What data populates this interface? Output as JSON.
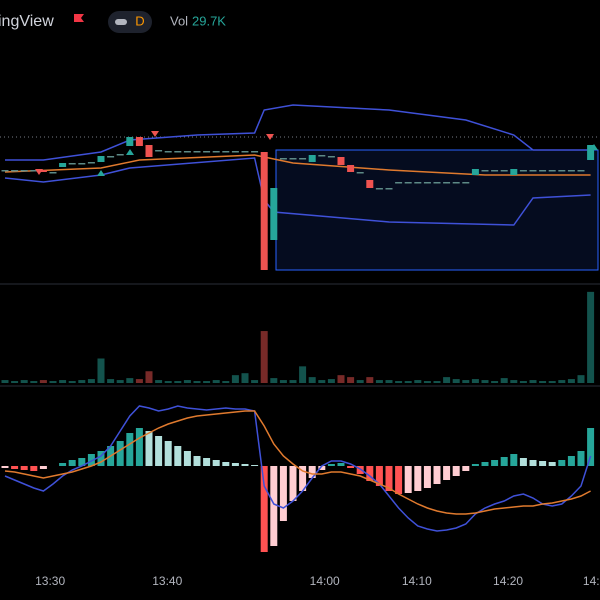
{
  "header": {
    "title": "ingView",
    "interval": "D",
    "volume_label": "Vol",
    "volume_value": "29.7K"
  },
  "chart_data": [
    {
      "type": "candlestick",
      "ylim": [
        0,
        200
      ],
      "price_line": 143,
      "up_color": "#26a69a",
      "down_color": "#ef5350",
      "flat_color": "#5d8a86",
      "open": [
        110,
        110,
        110,
        110,
        110,
        108,
        113,
        117,
        117,
        118,
        118,
        124,
        126,
        134,
        143,
        135,
        130,
        129,
        129,
        129,
        129,
        129,
        129,
        129,
        129,
        129,
        129,
        128,
        40,
        122,
        122,
        122,
        118,
        125,
        124,
        123,
        115,
        108,
        100,
        92,
        92,
        98,
        98,
        98,
        98,
        98,
        98,
        98,
        98,
        105,
        110,
        110,
        110,
        105,
        110,
        110,
        110,
        110,
        110,
        110,
        110,
        120
      ],
      "close": [
        110,
        110,
        110,
        110,
        108,
        108,
        117,
        117,
        117,
        118,
        124,
        124,
        126,
        143,
        134,
        123,
        130,
        129,
        129,
        129,
        129,
        129,
        129,
        129,
        129,
        129,
        129,
        10,
        92,
        122,
        122,
        122,
        125,
        125,
        124,
        115,
        108,
        108,
        92,
        92,
        92,
        98,
        98,
        98,
        98,
        98,
        98,
        98,
        98,
        111,
        110,
        110,
        110,
        111,
        110,
        110,
        110,
        110,
        110,
        110,
        110,
        135
      ],
      "lines": [
        {
          "color": "#3f51d8",
          "x": [
            0,
            4,
            10,
            13,
            20,
            26,
            27,
            30,
            40,
            48,
            53,
            55,
            61
          ],
          "values": [
            120,
            120,
            128,
            140,
            145,
            147,
            170,
            175,
            170,
            160,
            145,
            130,
            130
          ]
        },
        {
          "color": "#3f51d8",
          "x": [
            0,
            4,
            10,
            13,
            26,
            27,
            28,
            40,
            53,
            55,
            61
          ],
          "values": [
            102,
            98,
            105,
            112,
            122,
            80,
            68,
            58,
            55,
            82,
            85
          ]
        },
        {
          "color": "#e07a2e",
          "x": [
            0,
            10,
            14,
            26,
            30,
            40,
            50,
            61
          ],
          "values": [
            108,
            112,
            120,
            125,
            117,
            110,
            105,
            105
          ]
        }
      ]
    },
    {
      "type": "bar",
      "ylim": [
        0,
        100
      ],
      "values": [
        3,
        2,
        3,
        2,
        3,
        2,
        3,
        2,
        3,
        4,
        25,
        4,
        3,
        5,
        4,
        12,
        3,
        2,
        2,
        3,
        2,
        2,
        3,
        2,
        8,
        10,
        3,
        53,
        5,
        3,
        3,
        17,
        6,
        3,
        4,
        8,
        6,
        3,
        6,
        3,
        3,
        2,
        2,
        3,
        2,
        2,
        6,
        4,
        3,
        4,
        3,
        2,
        5,
        3,
        2,
        3,
        2,
        2,
        3,
        4,
        8,
        93
      ]
    },
    {
      "type": "macd",
      "ylim": [
        -94,
        71
      ],
      "hist_colors": [
        "#26a69a",
        "#b2dfdb",
        "#ff5252",
        "#ffcdd2"
      ],
      "histogram": [
        -2,
        -3,
        -4,
        -5,
        -3,
        0,
        3,
        6,
        8,
        12,
        15,
        20,
        25,
        33,
        38,
        35,
        30,
        25,
        20,
        15,
        10,
        8,
        6,
        4,
        3,
        2,
        1,
        -86,
        -80,
        -55,
        -35,
        -25,
        -12,
        -4,
        2,
        3,
        -2,
        -8,
        -15,
        -20,
        -25,
        -28,
        -27,
        -25,
        -22,
        -18,
        -14,
        -10,
        -5,
        2,
        4,
        6,
        9,
        12,
        8,
        6,
        5,
        4,
        6,
        10,
        15,
        38
      ],
      "lines": [
        {
          "color": "#3f51d8",
          "values": [
            -10,
            -14,
            -18,
            -22,
            -25,
            -18,
            -10,
            -4,
            0,
            5,
            10,
            20,
            35,
            50,
            60,
            58,
            55,
            57,
            60,
            58,
            57,
            56,
            57,
            58,
            57,
            57,
            55,
            -20,
            -38,
            -42,
            -35,
            -25,
            -12,
            0,
            5,
            5,
            2,
            -3,
            -10,
            -18,
            -30,
            -42,
            -52,
            -60,
            -63,
            -65,
            -64,
            -62,
            -58,
            -48,
            -42,
            -38,
            -35,
            -30,
            -28,
            -32,
            -38,
            -40,
            -38,
            -30,
            -20,
            10
          ]
        },
        {
          "color": "#e07a2e",
          "values": [
            -5,
            -6,
            -8,
            -10,
            -12,
            -10,
            -8,
            -6,
            -3,
            0,
            4,
            10,
            16,
            22,
            28,
            33,
            38,
            42,
            45,
            48,
            50,
            51,
            52,
            53,
            54,
            55,
            55,
            40,
            22,
            10,
            2,
            -5,
            -8,
            -8,
            -6,
            -6,
            -8,
            -10,
            -14,
            -18,
            -22,
            -28,
            -33,
            -38,
            -42,
            -45,
            -47,
            -48,
            -48,
            -47,
            -45,
            -43,
            -42,
            -41,
            -40,
            -40,
            -38,
            -37,
            -35,
            -33,
            -30,
            -25
          ]
        }
      ],
      "xticks": [
        {
          "value": 4.7,
          "label": "13:30"
        },
        {
          "value": 16.9,
          "label": "13:40"
        },
        {
          "value": 33.3,
          "label": "14:00"
        },
        {
          "value": 42.9,
          "label": "14:10"
        },
        {
          "value": 52.4,
          "label": "14:20"
        },
        {
          "value": 60.2,
          "label": "14:"
        }
      ]
    }
  ]
}
